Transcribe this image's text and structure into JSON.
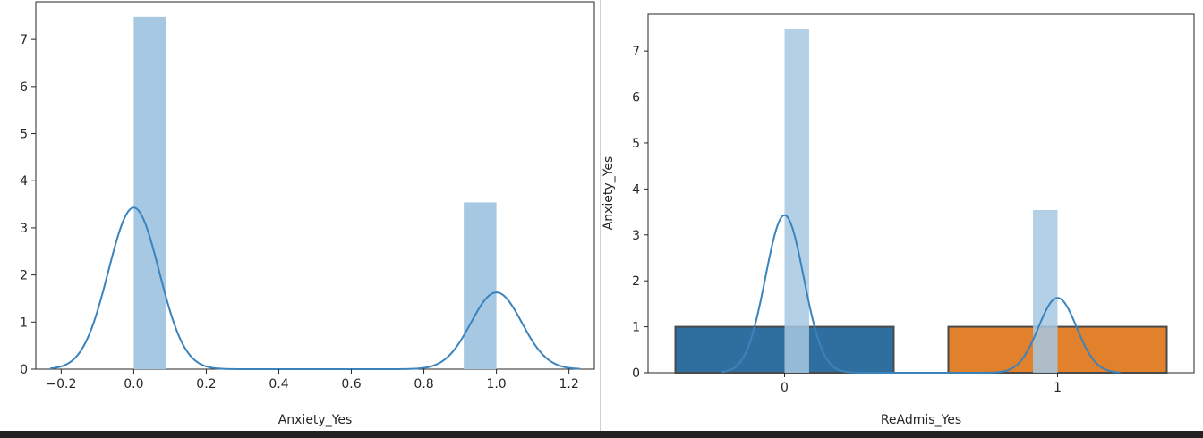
{
  "chart_data": [
    {
      "type": "histogram+kde",
      "title": "",
      "xlabel": "Anxiety_Yes",
      "ylabel": "",
      "xlim": [
        -0.27,
        1.27
      ],
      "ylim": [
        0,
        7.8
      ],
      "xticks": [
        -0.2,
        0.0,
        0.2,
        0.4,
        0.6,
        0.8,
        1.0,
        1.2
      ],
      "xtick_labels": [
        "−0.2",
        "0.0",
        "0.2",
        "0.4",
        "0.6",
        "0.8",
        "1.0",
        "1.2"
      ],
      "yticks": [
        0,
        1,
        2,
        3,
        4,
        5,
        6,
        7
      ],
      "ytick_labels": [
        "0",
        "1",
        "2",
        "3",
        "4",
        "5",
        "6",
        "7"
      ],
      "hist_bars": [
        {
          "x0": 0.0,
          "x1": 0.09,
          "height": 7.48
        },
        {
          "x0": 0.91,
          "x1": 1.0,
          "height": 3.54
        }
      ],
      "kde": {
        "range": [
          -0.23,
          1.23
        ],
        "components": [
          {
            "mean": 0.0,
            "sd": 0.07,
            "peak": 3.43
          },
          {
            "mean": 1.0,
            "sd": 0.07,
            "peak": 1.63
          }
        ]
      },
      "grid": false,
      "colors": {
        "hist": "#a6c8e2",
        "kde": "#3a83bd"
      }
    },
    {
      "type": "bar+histogram+kde",
      "title": "",
      "xlabel": "ReAdmis_Yes",
      "ylabel": "Anxiety_Yes",
      "xlim": [
        -0.5,
        1.5
      ],
      "ylim": [
        0,
        7.8
      ],
      "xticks": [
        0,
        1
      ],
      "xtick_labels": [
        "0",
        "1"
      ],
      "yticks": [
        0,
        1,
        2,
        3,
        4,
        5,
        6,
        7
      ],
      "ytick_labels": [
        "0",
        "1",
        "2",
        "3",
        "4",
        "5",
        "6",
        "7"
      ],
      "categories": [
        "0",
        "1"
      ],
      "bars": [
        {
          "category": "0",
          "x": 0,
          "value": 1.0,
          "color": "#2f6f9f"
        },
        {
          "category": "1",
          "x": 1,
          "value": 1.0,
          "color": "#e1812c"
        }
      ],
      "bar_width": 0.8,
      "hist_bars": [
        {
          "x0": 0.0,
          "x1": 0.09,
          "height": 7.48
        },
        {
          "x0": 0.91,
          "x1": 1.0,
          "height": 3.54
        }
      ],
      "kde": {
        "range": [
          -0.23,
          1.23
        ],
        "components": [
          {
            "mean": 0.0,
            "sd": 0.07,
            "peak": 3.43
          },
          {
            "mean": 1.0,
            "sd": 0.07,
            "peak": 1.63
          }
        ]
      },
      "grid": false,
      "colors": {
        "hist": "#a6c8e2",
        "kde": "#3a83bd"
      }
    }
  ]
}
